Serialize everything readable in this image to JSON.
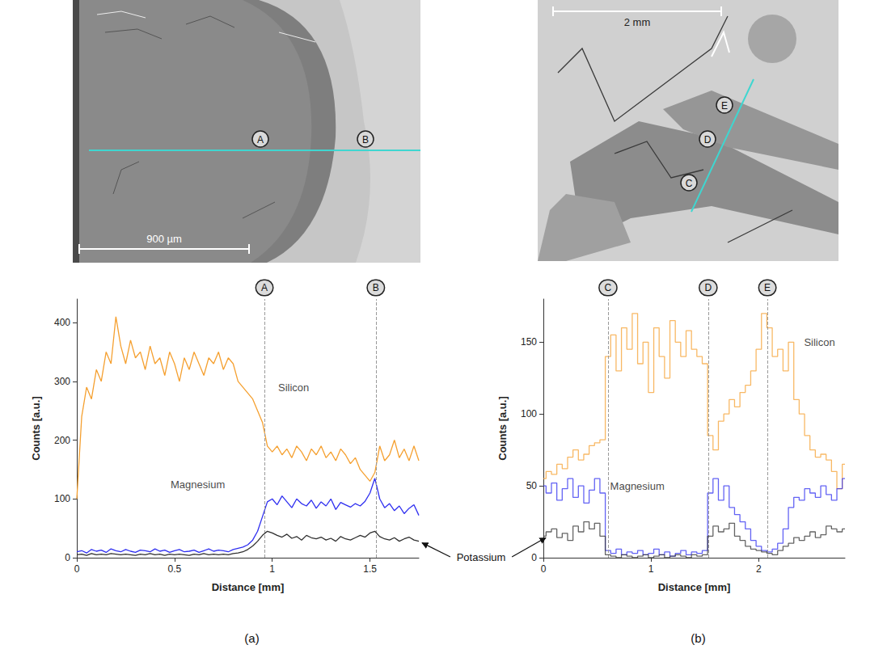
{
  "chart_data": [
    {
      "type": "line",
      "title": "(a)",
      "x_label": "Distance [mm]",
      "y_label": "Counts [a.u.]",
      "xlim": [
        0,
        1.75
      ],
      "xticks": [
        0,
        0.5,
        1,
        1.5
      ],
      "ylim": [
        0,
        440
      ],
      "yticks": [
        0,
        100,
        200,
        300,
        400
      ],
      "grid": false,
      "line_style": "solid",
      "marker": "none",
      "x": [
        0,
        0.025,
        0.05,
        0.075,
        0.1,
        0.125,
        0.15,
        0.175,
        0.2,
        0.225,
        0.25,
        0.275,
        0.3,
        0.325,
        0.35,
        0.375,
        0.4,
        0.425,
        0.45,
        0.475,
        0.5,
        0.525,
        0.55,
        0.575,
        0.6,
        0.625,
        0.65,
        0.675,
        0.7,
        0.725,
        0.75,
        0.775,
        0.8,
        0.825,
        0.85,
        0.875,
        0.9,
        0.925,
        0.95,
        0.975,
        1,
        1.025,
        1.05,
        1.075,
        1.1,
        1.125,
        1.15,
        1.175,
        1.2,
        1.225,
        1.25,
        1.275,
        1.3,
        1.325,
        1.35,
        1.375,
        1.4,
        1.425,
        1.45,
        1.475,
        1.5,
        1.525,
        1.55,
        1.575,
        1.6,
        1.625,
        1.65,
        1.675,
        1.7,
        1.725,
        1.75
      ],
      "series": [
        {
          "name": "Silicon",
          "color": "#f5a030",
          "values": [
            100,
            240,
            290,
            270,
            320,
            300,
            350,
            330,
            410,
            360,
            330,
            370,
            340,
            350,
            320,
            360,
            330,
            340,
            310,
            350,
            330,
            300,
            340,
            320,
            350,
            330,
            310,
            340,
            330,
            350,
            320,
            340,
            330,
            300,
            290,
            280,
            270,
            250,
            230,
            190,
            180,
            190,
            175,
            185,
            170,
            190,
            180,
            165,
            185,
            175,
            190,
            170,
            180,
            165,
            185,
            175,
            160,
            170,
            150,
            140,
            130,
            145,
            190,
            165,
            175,
            200,
            170,
            185,
            165,
            190,
            165
          ]
        },
        {
          "name": "Magnesium",
          "color": "#2f2ff0",
          "values": [
            10,
            12,
            8,
            14,
            11,
            13,
            9,
            15,
            12,
            10,
            14,
            11,
            9,
            13,
            12,
            10,
            15,
            11,
            13,
            9,
            12,
            14,
            10,
            11,
            13,
            9,
            12,
            15,
            11,
            13,
            12,
            10,
            14,
            16,
            18,
            22,
            30,
            45,
            70,
            95,
            100,
            90,
            105,
            95,
            85,
            100,
            92,
            88,
            98,
            84,
            95,
            88,
            100,
            82,
            94,
            90,
            86,
            92,
            88,
            96,
            110,
            135,
            100,
            85,
            92,
            80,
            88,
            75,
            84,
            90,
            72
          ]
        },
        {
          "name": "Potassium",
          "color": "#303030",
          "values": [
            5,
            6,
            4,
            7,
            5,
            6,
            5,
            7,
            6,
            5,
            6,
            5,
            4,
            6,
            5,
            7,
            5,
            6,
            4,
            6,
            5,
            6,
            5,
            4,
            6,
            5,
            7,
            5,
            6,
            5,
            6,
            5,
            7,
            8,
            10,
            14,
            20,
            28,
            38,
            45,
            42,
            38,
            35,
            40,
            33,
            36,
            30,
            38,
            34,
            32,
            35,
            30,
            33,
            28,
            36,
            32,
            30,
            34,
            38,
            35,
            42,
            45,
            36,
            32,
            30,
            34,
            28,
            32,
            35,
            30,
            28
          ]
        }
      ],
      "vlines": [
        {
          "label": "A",
          "x": 0.96
        },
        {
          "label": "B",
          "x": 1.53
        }
      ],
      "annotations": [
        {
          "text": "Silicon",
          "x": 1.03,
          "y": 290
        },
        {
          "text": "Magnesium",
          "x": 0.48,
          "y": 125
        }
      ]
    },
    {
      "type": "line",
      "title": "(b)",
      "x_label": "Distance [mm]",
      "y_label": "Counts [a.u.]",
      "xlim": [
        0,
        2.8
      ],
      "xticks": [
        0,
        1,
        2
      ],
      "ylim": [
        0,
        180
      ],
      "yticks": [
        0,
        50,
        100,
        150
      ],
      "grid": false,
      "line_style": "step",
      "marker": "none",
      "x": [
        0,
        0.05,
        0.1,
        0.15,
        0.2,
        0.25,
        0.3,
        0.35,
        0.4,
        0.45,
        0.5,
        0.55,
        0.6,
        0.65,
        0.7,
        0.75,
        0.8,
        0.85,
        0.9,
        0.95,
        1,
        1.05,
        1.1,
        1.15,
        1.2,
        1.25,
        1.3,
        1.35,
        1.4,
        1.45,
        1.5,
        1.55,
        1.6,
        1.65,
        1.7,
        1.75,
        1.8,
        1.85,
        1.9,
        1.95,
        2,
        2.05,
        2.1,
        2.15,
        2.2,
        2.25,
        2.3,
        2.35,
        2.4,
        2.45,
        2.5,
        2.55,
        2.6,
        2.65,
        2.7,
        2.75,
        2.8
      ],
      "series": [
        {
          "name": "Silicon",
          "color": "#f5a030",
          "values": [
            55,
            60,
            58,
            65,
            62,
            70,
            75,
            68,
            72,
            78,
            80,
            82,
            140,
            155,
            130,
            160,
            145,
            170,
            135,
            150,
            115,
            160,
            140,
            125,
            165,
            150,
            140,
            158,
            145,
            140,
            135,
            85,
            75,
            95,
            100,
            110,
            105,
            115,
            120,
            130,
            145,
            170,
            160,
            140,
            145,
            130,
            150,
            110,
            100,
            85,
            75,
            70,
            72,
            68,
            60,
            48,
            65
          ]
        },
        {
          "name": "Magnesium",
          "color": "#2f2ff0",
          "values": [
            50,
            45,
            52,
            40,
            48,
            55,
            42,
            50,
            38,
            47,
            55,
            45,
            5,
            3,
            6,
            2,
            4,
            3,
            5,
            2,
            3,
            6,
            2,
            4,
            1,
            3,
            5,
            2,
            4,
            3,
            5,
            45,
            55,
            40,
            50,
            35,
            30,
            25,
            20,
            12,
            8,
            5,
            4,
            6,
            10,
            20,
            35,
            42,
            40,
            48,
            45,
            42,
            50,
            44,
            40,
            48,
            55
          ]
        },
        {
          "name": "Potassium",
          "color": "#303030",
          "values": [
            15,
            18,
            20,
            14,
            17,
            12,
            22,
            18,
            25,
            20,
            24,
            15,
            2,
            1,
            0,
            2,
            1,
            0,
            1,
            2,
            0,
            1,
            2,
            0,
            1,
            2,
            1,
            0,
            2,
            1,
            2,
            15,
            22,
            18,
            20,
            24,
            15,
            12,
            8,
            6,
            5,
            4,
            3,
            2,
            5,
            8,
            10,
            14,
            12,
            15,
            18,
            14,
            16,
            22,
            20,
            18,
            20
          ]
        }
      ],
      "vlines": [
        {
          "label": "C",
          "x": 0.6
        },
        {
          "label": "D",
          "x": 1.53
        },
        {
          "label": "E",
          "x": 2.08
        }
      ],
      "annotations": [
        {
          "text": "Silicon",
          "x": 2.42,
          "y": 150
        },
        {
          "text": "Magnesium",
          "x": 0.62,
          "y": 50
        }
      ]
    }
  ],
  "micrographs": [
    {
      "scale_bar": "900 µm"
    },
    {
      "scale_bar": "2 mm"
    }
  ],
  "shared_annotation": "Potassium"
}
